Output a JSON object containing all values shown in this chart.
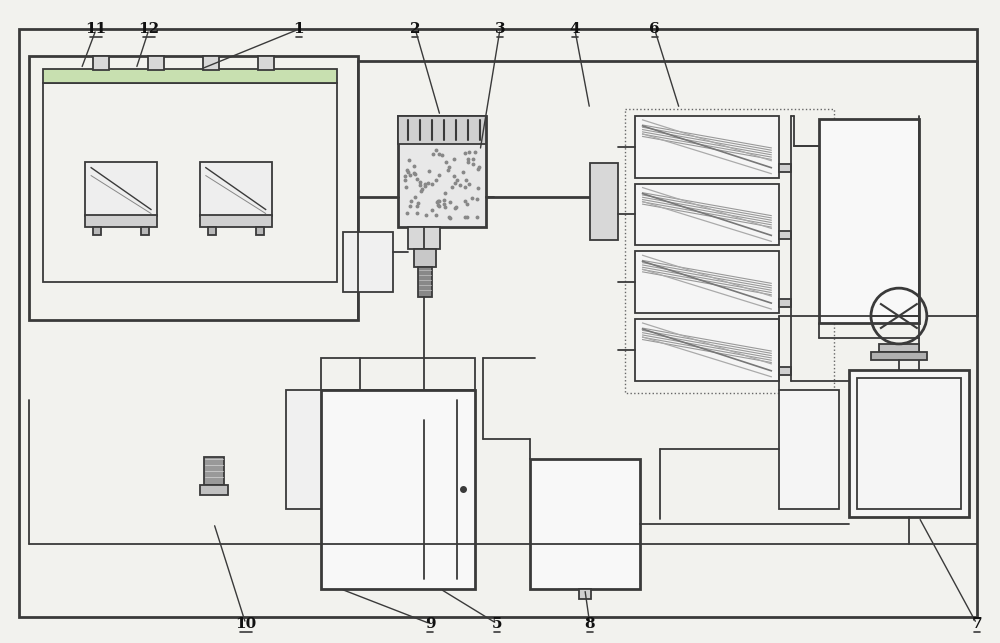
{
  "bg_color": "#f2f2ee",
  "line_color": "#3a3a3a",
  "lw": 1.3,
  "tlw": 2.0,
  "fig_w": 10.0,
  "fig_h": 6.43
}
